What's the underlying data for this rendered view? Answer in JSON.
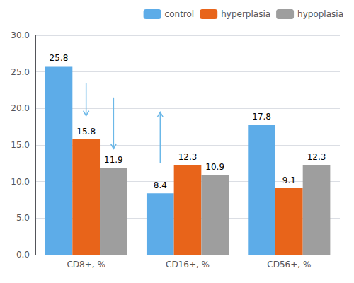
{
  "chart_data": {
    "type": "bar",
    "categories": [
      "CD8+, %",
      "CD16+, %",
      "CD56+, %"
    ],
    "series": [
      {
        "name": "control",
        "color": "#5DACE8",
        "values": [
          25.8,
          8.4,
          17.8
        ]
      },
      {
        "name": "hyperplasia",
        "color": "#E8641A",
        "values": [
          15.8,
          12.3,
          9.1
        ]
      },
      {
        "name": "hypoplasia",
        "color": "#9E9E9E",
        "values": [
          11.9,
          10.9,
          12.3
        ]
      }
    ],
    "ylim": [
      0,
      30
    ],
    "yticks": [
      {
        "value": 0,
        "label": "0.0"
      },
      {
        "value": 5,
        "label": "5.0"
      },
      {
        "value": 10,
        "label": "10.0"
      },
      {
        "value": 15,
        "label": "15.0"
      },
      {
        "value": 20,
        "label": "20.0"
      },
      {
        "value": 25,
        "label": "25.0"
      },
      {
        "value": 30,
        "label": "30.0"
      }
    ],
    "grid": true,
    "legend": "upper right",
    "data_labels": true,
    "arrows": [
      {
        "category": "CD8+, %",
        "series": "hyperplasia",
        "from": 23.5,
        "to": 19.0,
        "color": "#6BB8E8"
      },
      {
        "category": "CD8+, %",
        "series": "hypoplasia",
        "from": 21.5,
        "to": 14.5,
        "color": "#6BB8E8"
      },
      {
        "category": "CD16+, %",
        "series": "control",
        "from": 12.5,
        "to": 19.5,
        "color": "#6BB8E8"
      }
    ]
  }
}
